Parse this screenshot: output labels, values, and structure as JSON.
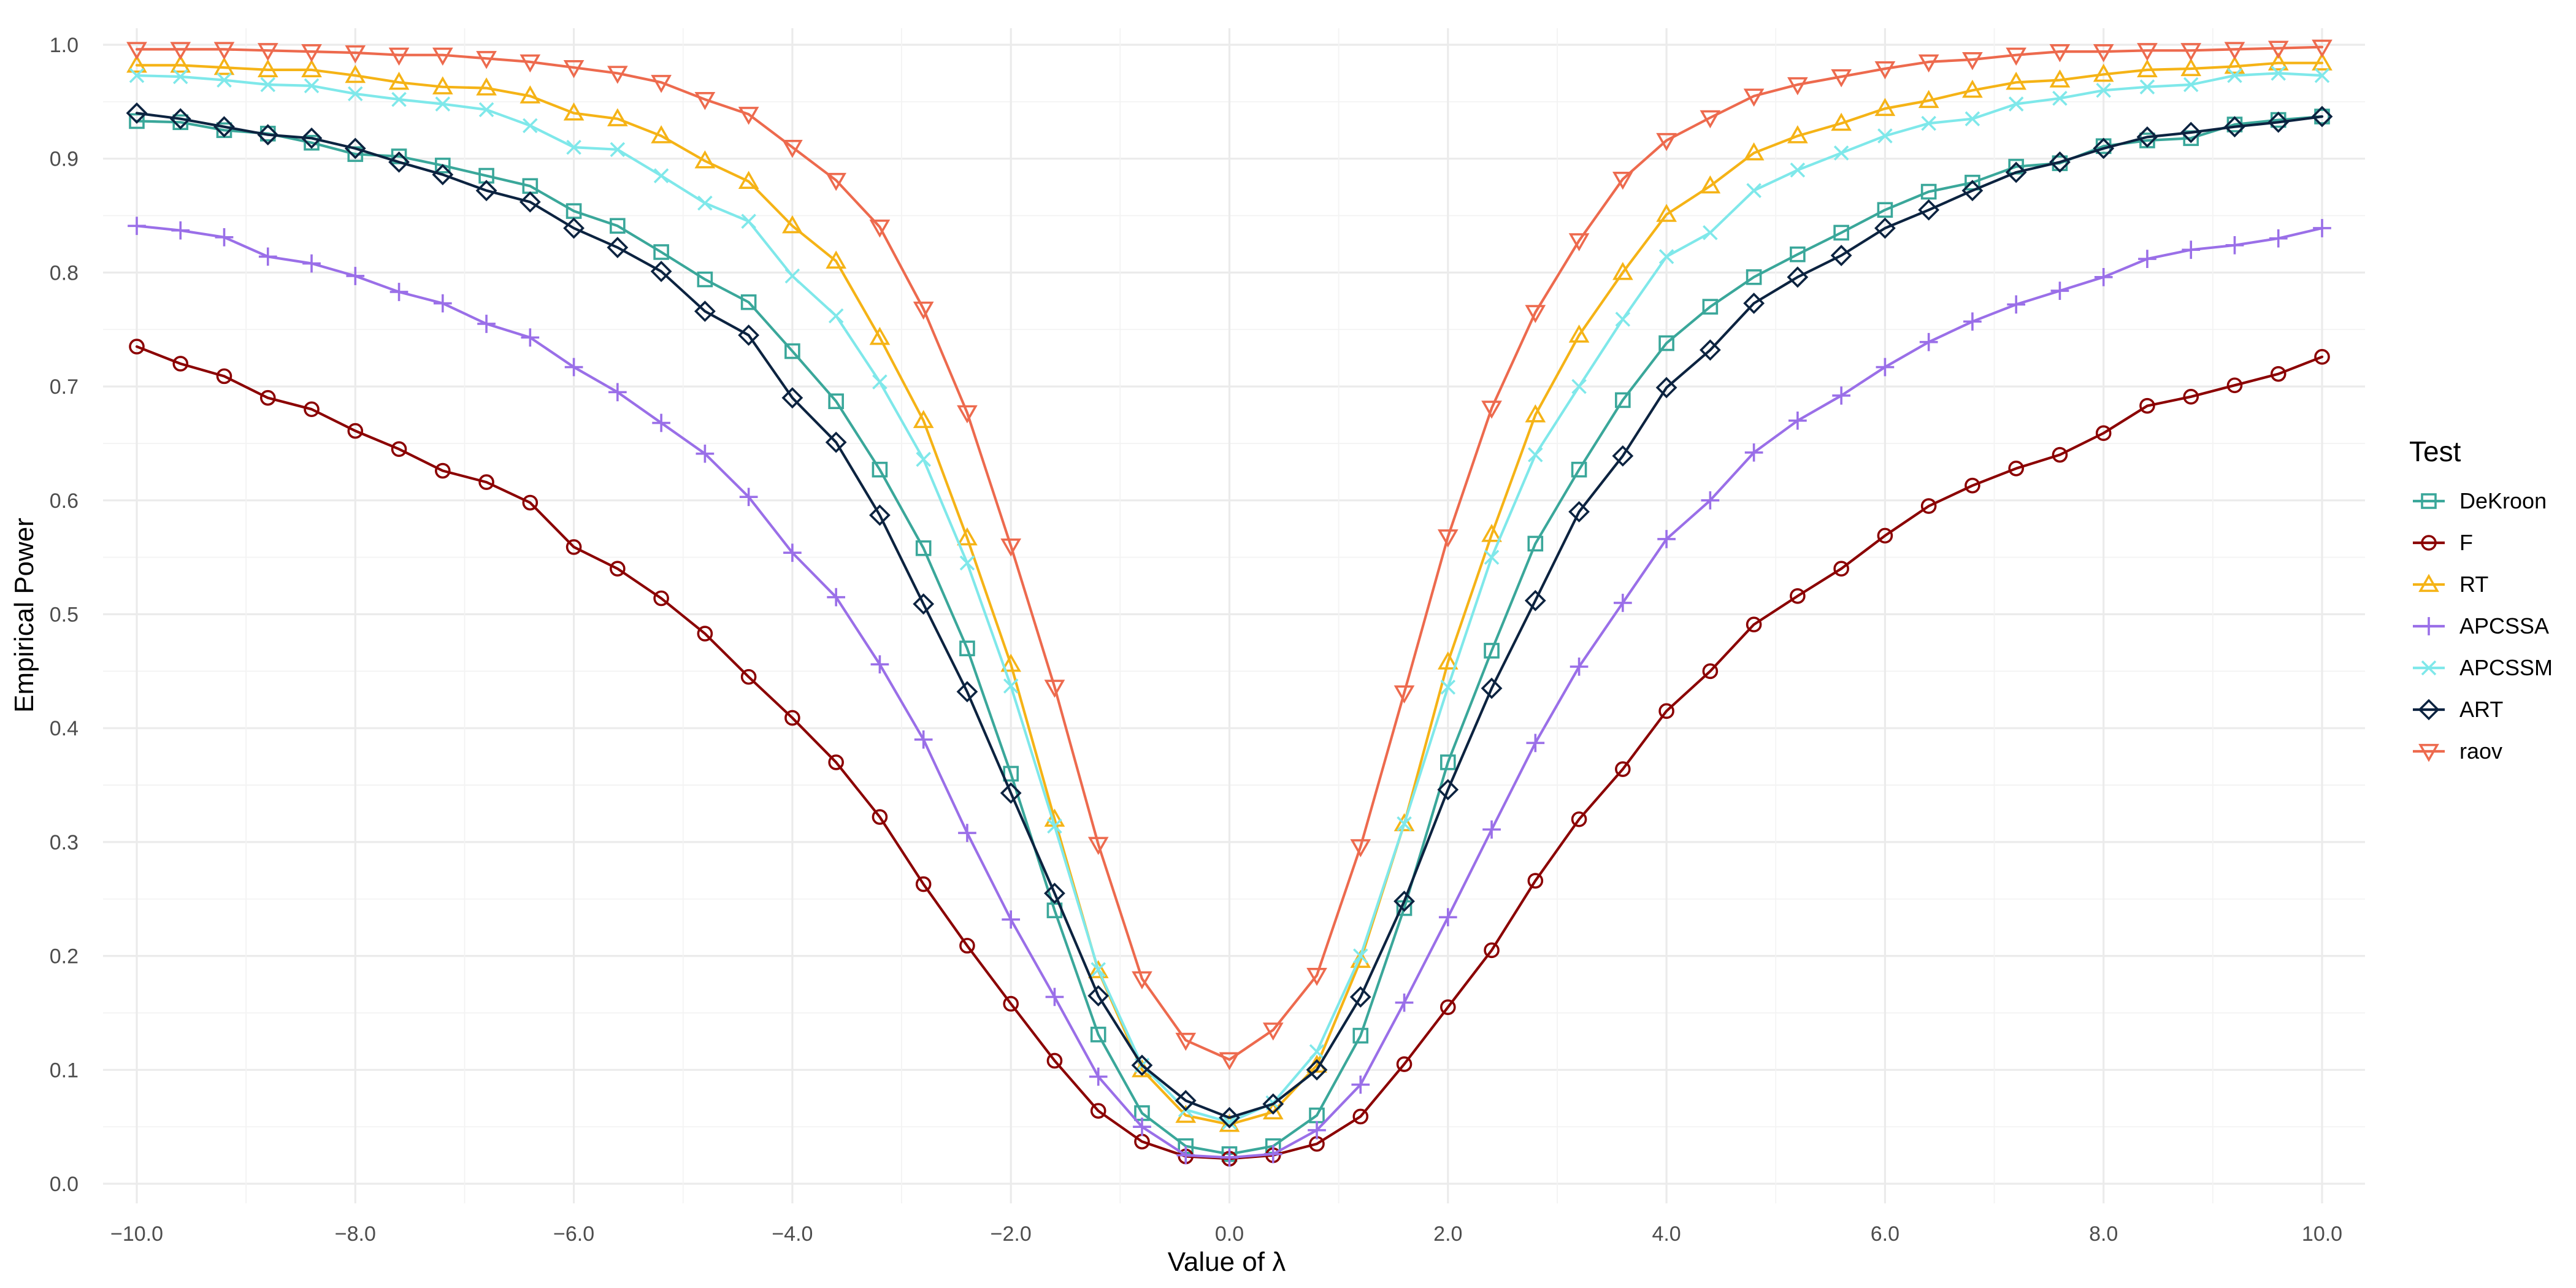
{
  "chart_data": {
    "type": "line",
    "title": "",
    "xlabel": "Value of λ",
    "ylabel": "Empirical Power",
    "legend_title": "Test",
    "legend_position": "right",
    "grid": true,
    "xlim": [
      -10,
      10
    ],
    "ylim": [
      0,
      1
    ],
    "x_ticks": [
      -10,
      -8,
      -6,
      -4,
      -2,
      0,
      2,
      4,
      6,
      8,
      10
    ],
    "x_tick_labels": [
      "−10.0",
      "−8.0",
      "−6.0",
      "−4.0",
      "−2.0",
      "0.0",
      "2.0",
      "4.0",
      "6.0",
      "8.0",
      "10.0"
    ],
    "y_ticks": [
      0,
      0.1,
      0.2,
      0.3,
      0.4,
      0.5,
      0.6,
      0.7,
      0.8,
      0.9,
      1.0
    ],
    "y_tick_labels": [
      "0.0",
      "0.1",
      "0.2",
      "0.3",
      "0.4",
      "0.5",
      "0.6",
      "0.7",
      "0.8",
      "0.9",
      "1.0"
    ],
    "x": [
      -10,
      -9.6,
      -9.2,
      -8.8,
      -8.4,
      -8,
      -7.6,
      -7.2,
      -6.8,
      -6.4,
      -6,
      -5.6,
      -5.2,
      -4.8,
      -4.4,
      -4,
      -3.6,
      -3.2,
      -2.8,
      -2.4,
      -2,
      -1.6,
      -1.2,
      -0.8,
      -0.4,
      0,
      0.4,
      0.8,
      1.2,
      1.6,
      2,
      2.4,
      2.8,
      3.2,
      3.6,
      4,
      4.4,
      4.8,
      5.2,
      5.6,
      6,
      6.4,
      6.8,
      7.2,
      7.6,
      8,
      8.4,
      8.8,
      9.2,
      9.6,
      10
    ],
    "series": [
      {
        "name": "DeKroon",
        "color": "#3aa79a",
        "marker": "square",
        "values": [
          0.933,
          0.932,
          0.925,
          0.922,
          0.914,
          0.904,
          0.902,
          0.894,
          0.885,
          0.876,
          0.854,
          0.841,
          0.818,
          0.794,
          0.774,
          0.731,
          0.687,
          0.627,
          0.558,
          0.47,
          0.36,
          0.24,
          0.131,
          0.062,
          0.033,
          0.026,
          0.033,
          0.06,
          0.13,
          0.242,
          0.37,
          0.468,
          0.562,
          0.627,
          0.688,
          0.738,
          0.77,
          0.796,
          0.816,
          0.835,
          0.855,
          0.871,
          0.879,
          0.893,
          0.896,
          0.911,
          0.916,
          0.918,
          0.93,
          0.934,
          0.937
        ]
      },
      {
        "name": "F",
        "color": "#8b0000",
        "marker": "circle",
        "values": [
          0.735,
          0.72,
          0.709,
          0.69,
          0.68,
          0.661,
          0.645,
          0.626,
          0.616,
          0.598,
          0.559,
          0.54,
          0.514,
          0.483,
          0.445,
          0.409,
          0.37,
          0.322,
          0.263,
          0.209,
          0.158,
          0.108,
          0.064,
          0.037,
          0.024,
          0.022,
          0.025,
          0.035,
          0.059,
          0.105,
          0.155,
          0.205,
          0.266,
          0.32,
          0.364,
          0.415,
          0.45,
          0.491,
          0.516,
          0.54,
          0.569,
          0.595,
          0.613,
          0.628,
          0.64,
          0.659,
          0.683,
          0.691,
          0.701,
          0.711,
          0.726
        ]
      },
      {
        "name": "RT",
        "color": "#f5b316",
        "marker": "triangle-up",
        "values": [
          0.982,
          0.982,
          0.98,
          0.978,
          0.978,
          0.973,
          0.967,
          0.963,
          0.962,
          0.955,
          0.94,
          0.935,
          0.92,
          0.898,
          0.88,
          0.841,
          0.81,
          0.743,
          0.67,
          0.567,
          0.456,
          0.32,
          0.187,
          0.1,
          0.06,
          0.052,
          0.063,
          0.104,
          0.196,
          0.316,
          0.458,
          0.57,
          0.675,
          0.745,
          0.8,
          0.851,
          0.876,
          0.905,
          0.92,
          0.931,
          0.944,
          0.951,
          0.96,
          0.967,
          0.969,
          0.974,
          0.978,
          0.979,
          0.981,
          0.984,
          0.984
        ]
      },
      {
        "name": "APCSSA",
        "color": "#9a6fe8",
        "marker": "plus",
        "values": [
          0.841,
          0.837,
          0.831,
          0.814,
          0.808,
          0.797,
          0.783,
          0.773,
          0.755,
          0.743,
          0.717,
          0.695,
          0.668,
          0.641,
          0.603,
          0.554,
          0.515,
          0.456,
          0.39,
          0.308,
          0.232,
          0.164,
          0.094,
          0.05,
          0.025,
          0.023,
          0.026,
          0.047,
          0.087,
          0.159,
          0.234,
          0.311,
          0.387,
          0.454,
          0.51,
          0.566,
          0.6,
          0.642,
          0.67,
          0.692,
          0.717,
          0.739,
          0.757,
          0.772,
          0.784,
          0.796,
          0.812,
          0.82,
          0.824,
          0.83,
          0.839
        ]
      },
      {
        "name": "APCSSM",
        "color": "#7fe8ea",
        "marker": "x",
        "values": [
          0.973,
          0.972,
          0.969,
          0.965,
          0.964,
          0.957,
          0.952,
          0.948,
          0.943,
          0.929,
          0.91,
          0.908,
          0.885,
          0.861,
          0.845,
          0.797,
          0.762,
          0.704,
          0.636,
          0.545,
          0.437,
          0.314,
          0.188,
          0.104,
          0.065,
          0.054,
          0.071,
          0.116,
          0.2,
          0.316,
          0.436,
          0.55,
          0.64,
          0.7,
          0.759,
          0.814,
          0.835,
          0.872,
          0.89,
          0.905,
          0.92,
          0.931,
          0.935,
          0.948,
          0.953,
          0.96,
          0.963,
          0.965,
          0.973,
          0.975,
          0.973
        ]
      },
      {
        "name": "ART",
        "color": "#0c2340",
        "marker": "diamond",
        "values": [
          0.94,
          0.935,
          0.928,
          0.921,
          0.918,
          0.909,
          0.897,
          0.886,
          0.872,
          0.862,
          0.839,
          0.822,
          0.801,
          0.766,
          0.745,
          0.69,
          0.651,
          0.587,
          0.509,
          0.432,
          0.343,
          0.255,
          0.165,
          0.104,
          0.073,
          0.058,
          0.07,
          0.1,
          0.164,
          0.248,
          0.346,
          0.435,
          0.512,
          0.59,
          0.639,
          0.699,
          0.732,
          0.773,
          0.796,
          0.815,
          0.839,
          0.855,
          0.872,
          0.888,
          0.897,
          0.909,
          0.919,
          0.923,
          0.928,
          0.932,
          0.937
        ]
      },
      {
        "name": "raov",
        "color": "#ed6a4e",
        "marker": "triangle-down",
        "values": [
          0.996,
          0.996,
          0.996,
          0.995,
          0.994,
          0.993,
          0.991,
          0.991,
          0.988,
          0.985,
          0.98,
          0.975,
          0.967,
          0.952,
          0.939,
          0.91,
          0.881,
          0.84,
          0.768,
          0.677,
          0.56,
          0.436,
          0.298,
          0.18,
          0.126,
          0.109,
          0.135,
          0.183,
          0.296,
          0.431,
          0.568,
          0.681,
          0.765,
          0.828,
          0.882,
          0.916,
          0.936,
          0.955,
          0.965,
          0.972,
          0.979,
          0.985,
          0.987,
          0.991,
          0.994,
          0.994,
          0.995,
          0.995,
          0.996,
          0.997,
          0.998
        ]
      }
    ]
  }
}
